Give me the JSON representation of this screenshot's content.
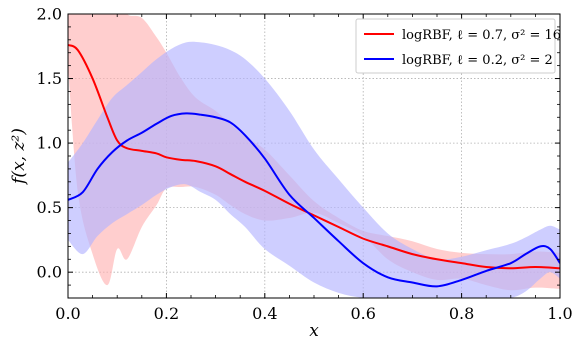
{
  "chart_data": {
    "type": "line",
    "title": "",
    "xlabel": "x",
    "ylabel": "f(x, z²)",
    "xlim": [
      0.0,
      1.0
    ],
    "ylim": [
      -0.2,
      2.0
    ],
    "xticks": [
      0.0,
      0.2,
      0.4,
      0.6,
      0.8,
      1.0
    ],
    "xtick_labels": [
      "0.0",
      "0.2",
      "0.4",
      "0.6",
      "0.8",
      "1.0"
    ],
    "yticks": [
      0.0,
      0.5,
      1.0,
      1.5,
      2.0
    ],
    "ytick_labels": [
      "0.0",
      "0.5",
      "1.0",
      "1.5",
      "2.0"
    ],
    "grid": true,
    "legend_position": "top-right",
    "series": [
      {
        "name": "logRBF, ℓ = 0.7, σ² = 16",
        "color": "#ff0000",
        "band_color": "#ffb3b3",
        "x": [
          0.0,
          0.02,
          0.05,
          0.08,
          0.1,
          0.12,
          0.15,
          0.18,
          0.2,
          0.23,
          0.26,
          0.3,
          0.33,
          0.36,
          0.4,
          0.45,
          0.5,
          0.55,
          0.6,
          0.65,
          0.7,
          0.75,
          0.8,
          0.85,
          0.9,
          0.95,
          1.0
        ],
        "y": [
          1.76,
          1.72,
          1.5,
          1.2,
          1.02,
          0.96,
          0.94,
          0.92,
          0.89,
          0.87,
          0.86,
          0.82,
          0.76,
          0.7,
          0.63,
          0.53,
          0.44,
          0.35,
          0.26,
          0.2,
          0.14,
          0.1,
          0.07,
          0.04,
          0.03,
          0.04,
          0.03
        ],
        "lower": [
          1.6,
          0.62,
          0.14,
          -0.1,
          0.18,
          0.1,
          0.35,
          0.52,
          0.65,
          0.66,
          0.66,
          0.6,
          0.52,
          0.45,
          0.4,
          0.42,
          0.46,
          0.38,
          0.28,
          0.1,
          0.0,
          -0.06,
          -0.05,
          -0.1,
          -0.14,
          -0.12,
          -0.13
        ],
        "upper": [
          2.2,
          2.2,
          2.2,
          2.2,
          2.15,
          2.0,
          1.97,
          1.82,
          1.7,
          1.5,
          1.35,
          1.25,
          1.15,
          1.05,
          0.95,
          0.75,
          0.55,
          0.42,
          0.32,
          0.28,
          0.24,
          0.18,
          0.15,
          0.14,
          0.14,
          0.16,
          0.15
        ]
      },
      {
        "name": "logRBF, ℓ = 0.2, σ² = 2",
        "color": "#0000ff",
        "band_color": "#b3b3ff",
        "x": [
          0.0,
          0.03,
          0.06,
          0.09,
          0.12,
          0.15,
          0.18,
          0.21,
          0.24,
          0.27,
          0.3,
          0.33,
          0.36,
          0.4,
          0.45,
          0.5,
          0.55,
          0.6,
          0.65,
          0.7,
          0.75,
          0.8,
          0.85,
          0.9,
          0.93,
          0.96,
          0.98,
          1.0
        ],
        "y": [
          0.56,
          0.62,
          0.8,
          0.93,
          1.02,
          1.08,
          1.15,
          1.21,
          1.23,
          1.22,
          1.2,
          1.16,
          1.06,
          0.88,
          0.6,
          0.42,
          0.24,
          0.07,
          -0.04,
          -0.08,
          -0.11,
          -0.06,
          0.01,
          0.07,
          0.14,
          0.2,
          0.18,
          0.07
        ],
        "lower": [
          0.25,
          0.14,
          0.28,
          0.38,
          0.45,
          0.52,
          0.6,
          0.66,
          0.68,
          0.62,
          0.56,
          0.45,
          0.35,
          0.18,
          0.05,
          -0.08,
          -0.16,
          -0.2,
          -0.22,
          -0.22,
          -0.22,
          -0.22,
          -0.22,
          -0.2,
          -0.15,
          -0.05,
          0.0,
          -0.05
        ],
        "upper": [
          0.85,
          1.0,
          1.18,
          1.35,
          1.45,
          1.55,
          1.65,
          1.73,
          1.78,
          1.78,
          1.76,
          1.72,
          1.65,
          1.5,
          1.25,
          0.95,
          0.72,
          0.5,
          0.3,
          0.18,
          0.1,
          0.12,
          0.17,
          0.22,
          0.27,
          0.33,
          0.36,
          0.33
        ]
      }
    ]
  }
}
